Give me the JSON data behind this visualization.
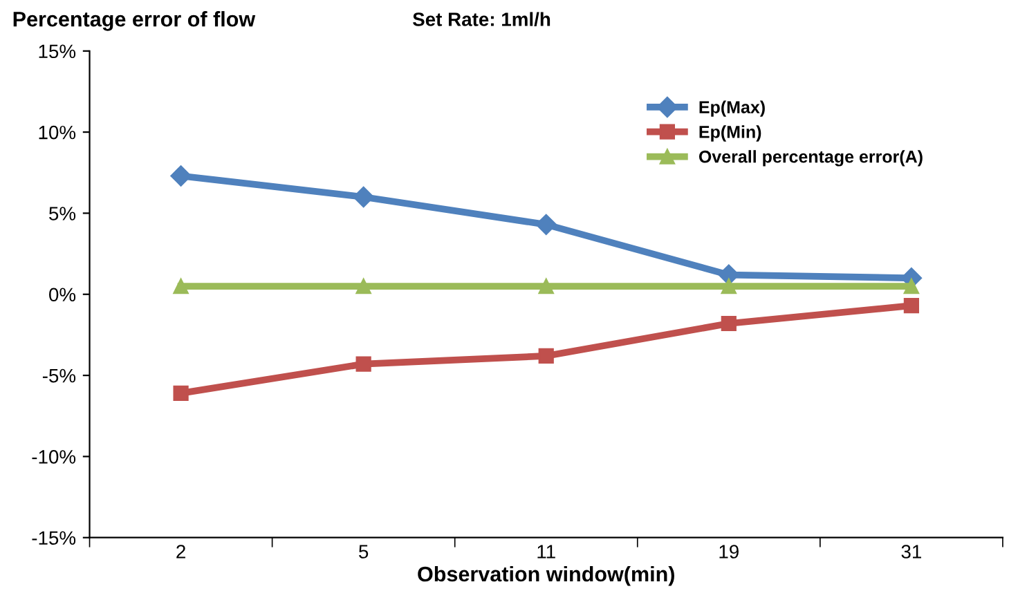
{
  "chart_data": {
    "type": "line",
    "title": "Percentage error of flow",
    "subtitle": "Set Rate: 1ml/h",
    "xlabel": "Observation window(min)",
    "categories": [
      "2",
      "5",
      "11",
      "19",
      "31"
    ],
    "series": [
      {
        "name": "Ep(Max)",
        "color": "#4f81bd",
        "marker": "diamond",
        "values": [
          7.3,
          6.0,
          4.3,
          1.2,
          1.0
        ]
      },
      {
        "name": "Ep(Min)",
        "color": "#c0504d",
        "marker": "square",
        "values": [
          -6.1,
          -4.3,
          -3.8,
          -1.8,
          -0.7
        ]
      },
      {
        "name": "Overall percentage error(A)",
        "color": "#9bbb59",
        "marker": "triangle",
        "values": [
          0.5,
          0.5,
          0.5,
          0.5,
          0.5
        ]
      }
    ],
    "ylim": [
      -15,
      15
    ],
    "yticks": [
      {
        "value": -15,
        "label": "-15%"
      },
      {
        "value": -10,
        "label": "-10%"
      },
      {
        "value": -5,
        "label": "-5%"
      },
      {
        "value": 0,
        "label": "0%"
      },
      {
        "value": 5,
        "label": "5%"
      },
      {
        "value": 10,
        "label": "10%"
      },
      {
        "value": 15,
        "label": "15%"
      }
    ],
    "grid": false,
    "legend": "top right",
    "line_style": "solid"
  }
}
